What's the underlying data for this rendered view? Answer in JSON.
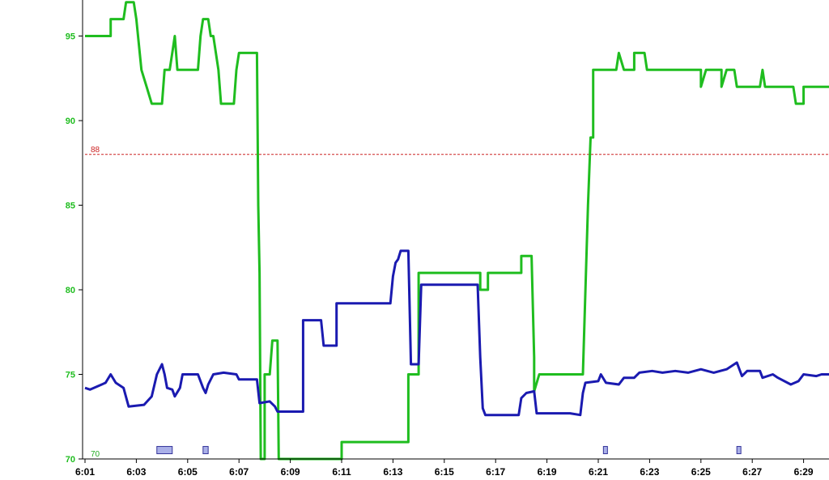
{
  "chart_data": {
    "type": "line",
    "title": "",
    "xlabel": "",
    "ylabel": "",
    "x_tick_labels": [
      "6:01",
      "6:03",
      "6:05",
      "6:07",
      "6:09",
      "6:11",
      "6:13",
      "6:15",
      "6:17",
      "6:19",
      "6:21",
      "6:23",
      "6:25",
      "6:27",
      "6:29"
    ],
    "y_tick_labels": [
      "70",
      "75",
      "80",
      "85",
      "90",
      "95"
    ],
    "xlim": [
      "6:01",
      "6:30"
    ],
    "ylim": [
      70,
      97
    ],
    "grid": false,
    "reference_lines": [
      {
        "value": 88,
        "label": "88",
        "color": "#cc2222"
      },
      {
        "value": 70,
        "label": "70",
        "color": "#22aa22"
      }
    ],
    "colors": {
      "green_series": "#1fbd1f",
      "blue_series": "#1a1ab0",
      "axis_text": "#1fbd1f",
      "gap_gray": "#888888",
      "marker_fill": "#aab0e8",
      "marker_stroke": "#333399"
    },
    "series": [
      {
        "color": "#1fbd1f",
        "points": [
          [
            "6:01",
            95
          ],
          [
            "6:02",
            95
          ],
          [
            "6:02",
            96
          ],
          [
            "6:02.5",
            96
          ],
          [
            "6:02.6",
            97
          ],
          [
            "6:02.9",
            97
          ],
          [
            "6:03",
            96
          ],
          [
            "6:03.2",
            93
          ],
          [
            "6:03.4",
            92
          ],
          [
            "6:03.6",
            91
          ],
          [
            "6:04",
            91
          ],
          [
            "6:04.1",
            93
          ],
          [
            "6:04.3",
            93
          ],
          [
            "6:04.4",
            94
          ],
          [
            "6:04.5",
            95
          ],
          [
            "6:04.6",
            93
          ],
          [
            "6:05.4",
            93
          ],
          [
            "6:05.5",
            95
          ],
          [
            "6:05.6",
            96
          ],
          [
            "6:05.8",
            96
          ],
          [
            "6:05.9",
            95
          ],
          [
            "6:06",
            95
          ],
          [
            "6:06.2",
            93
          ],
          [
            "6:06.3",
            91
          ],
          [
            "6:06.8",
            91
          ],
          [
            "6:06.9",
            93
          ],
          [
            "6:07",
            94
          ],
          [
            "6:07.7",
            94
          ],
          [
            "6:07.75",
            85
          ],
          [
            "6:07.8",
            81
          ],
          [
            "6:07.85",
            70
          ],
          [
            "6:08",
            70
          ],
          [
            "6:08",
            75
          ],
          [
            "6:08.2",
            75
          ],
          [
            "6:08.3",
            77
          ],
          [
            "6:08.5",
            77
          ],
          [
            "6:08.55",
            70
          ],
          [
            "6:10.6",
            70
          ],
          [
            "6:11",
            70
          ],
          [
            "6:11",
            71
          ],
          [
            "6:13.6",
            71
          ],
          [
            "6:13.6",
            75
          ],
          [
            "6:14",
            75
          ],
          [
            "6:14",
            81
          ],
          [
            "6:16.4",
            81
          ],
          [
            "6:16.4",
            80
          ],
          [
            "6:16.7",
            80
          ],
          [
            "6:16.7",
            81
          ],
          [
            "6:18",
            81
          ],
          [
            "6:18",
            82
          ],
          [
            "6:18.4",
            82
          ],
          [
            "6:18.5",
            76
          ],
          [
            "6:18.5",
            74
          ],
          [
            "6:18.7",
            75
          ],
          [
            "6:20.4",
            75
          ],
          [
            "6:20.6",
            85
          ],
          [
            "6:20.7",
            89
          ],
          [
            "6:20.8",
            89
          ],
          [
            "6:20.8",
            93
          ],
          [
            "6:21.7",
            93
          ],
          [
            "6:21.8",
            94
          ],
          [
            "6:22",
            93
          ],
          [
            "6:22.4",
            93
          ],
          [
            "6:22.4",
            94
          ],
          [
            "6:22.8",
            94
          ],
          [
            "6:22.9",
            93
          ],
          [
            "6:25",
            93
          ],
          [
            "6:25",
            92
          ],
          [
            "6:25.2",
            93
          ],
          [
            "6:25.8",
            93
          ],
          [
            "6:25.8",
            92
          ],
          [
            "6:26",
            93
          ],
          [
            "6:26.3",
            93
          ],
          [
            "6:26.4",
            92
          ],
          [
            "6:27.3",
            92
          ],
          [
            "6:27.4",
            93
          ],
          [
            "6:27.5",
            92
          ],
          [
            "6:28.6",
            92
          ],
          [
            "6:28.7",
            91
          ],
          [
            "6:29",
            91
          ],
          [
            "6:29",
            92
          ],
          [
            "6:30",
            92
          ]
        ]
      },
      {
        "color": "#1a1ab0",
        "points": [
          [
            "6:01",
            74.2
          ],
          [
            "6:01.2",
            74.1
          ],
          [
            "6:01.5",
            74.3
          ],
          [
            "6:01.8",
            74.5
          ],
          [
            "6:02",
            75
          ],
          [
            "6:02.2",
            74.5
          ],
          [
            "6:02.5",
            74.2
          ],
          [
            "6:02.7",
            73.1
          ],
          [
            "6:03.3",
            73.2
          ],
          [
            "6:03.6",
            73.7
          ],
          [
            "6:03.8",
            75
          ],
          [
            "6:04",
            75.6
          ],
          [
            "6:04.1",
            75
          ],
          [
            "6:04.2",
            74.2
          ],
          [
            "6:04.4",
            74.1
          ],
          [
            "6:04.5",
            73.7
          ],
          [
            "6:04.7",
            74.2
          ],
          [
            "6:04.8",
            75
          ],
          [
            "6:05.4",
            75
          ],
          [
            "6:05.6",
            74.2
          ],
          [
            "6:05.7",
            73.9
          ],
          [
            "6:05.8",
            74.4
          ],
          [
            "6:06",
            75
          ],
          [
            "6:06.4",
            75.1
          ],
          [
            "6:06.9",
            75
          ],
          [
            "6:07",
            74.7
          ],
          [
            "6:07.7",
            74.7
          ],
          [
            "6:07.8",
            73.3
          ],
          [
            "6:08.2",
            73.4
          ],
          [
            "6:08.4",
            73.1
          ],
          [
            "6:08.5",
            72.8
          ],
          [
            "6:09",
            72.8
          ],
          [
            "6:09.5",
            72.8
          ],
          [
            "6:09.5",
            78.2
          ],
          [
            "6:10.2",
            78.2
          ],
          [
            "6:10.3",
            76.7
          ],
          [
            "6:10.8",
            76.7
          ],
          [
            "6:10.8",
            79.2
          ],
          [
            "6:12.9",
            79.2
          ],
          [
            "6:13",
            80.8
          ],
          [
            "6:13.1",
            81.6
          ],
          [
            "6:13.2",
            81.8
          ],
          [
            "6:13.3",
            82.3
          ],
          [
            "6:13.6",
            82.3
          ],
          [
            "6:13.7",
            75.6
          ],
          [
            "6:14",
            75.6
          ],
          [
            "6:14.1",
            80.3
          ],
          [
            "6:16.3",
            80.3
          ],
          [
            "6:16.4",
            76
          ],
          [
            "6:16.5",
            73
          ],
          [
            "6:16.6",
            72.6
          ],
          [
            "6:17.9",
            72.6
          ],
          [
            "6:18",
            73.6
          ],
          [
            "6:18.2",
            73.9
          ],
          [
            "6:18.5",
            74
          ],
          [
            "6:18.6",
            72.7
          ],
          [
            "6:19.9",
            72.7
          ],
          [
            "6:20.3",
            72.6
          ],
          [
            "6:20.4",
            73.9
          ],
          [
            "6:20.5",
            74.5
          ],
          [
            "6:21",
            74.6
          ],
          [
            "6:21.1",
            75
          ],
          [
            "6:21.3",
            74.5
          ],
          [
            "6:21.8",
            74.4
          ],
          [
            "6:22",
            74.8
          ],
          [
            "6:22.4",
            74.8
          ],
          [
            "6:22.6",
            75.1
          ],
          [
            "6:23.1",
            75.2
          ],
          [
            "6:23.5",
            75.1
          ],
          [
            "6:24",
            75.2
          ],
          [
            "6:24.5",
            75.1
          ],
          [
            "6:25",
            75.3
          ],
          [
            "6:25.5",
            75.1
          ],
          [
            "6:26",
            75.3
          ],
          [
            "6:26.4",
            75.7
          ],
          [
            "6:26.6",
            74.9
          ],
          [
            "6:26.8",
            75.2
          ],
          [
            "6:27.3",
            75.2
          ],
          [
            "6:27.4",
            74.8
          ],
          [
            "6:27.8",
            75
          ],
          [
            "6:28",
            74.8
          ],
          [
            "6:28.5",
            74.4
          ],
          [
            "6:28.8",
            74.6
          ],
          [
            "6:29",
            75
          ],
          [
            "6:29.5",
            74.9
          ],
          [
            "6:29.7",
            75
          ],
          [
            "6:30",
            75
          ]
        ]
      }
    ],
    "event_markers": [
      {
        "start": "6:03.8",
        "end": "6:04.4",
        "value": 70.5
      },
      {
        "start": "6:05.6",
        "end": "6:05.8",
        "value": 70.5
      },
      {
        "start": "6:21.2",
        "end": "6:21.35",
        "value": 70.5
      },
      {
        "start": "6:26.4",
        "end": "6:26.55",
        "value": 70.5
      }
    ]
  }
}
